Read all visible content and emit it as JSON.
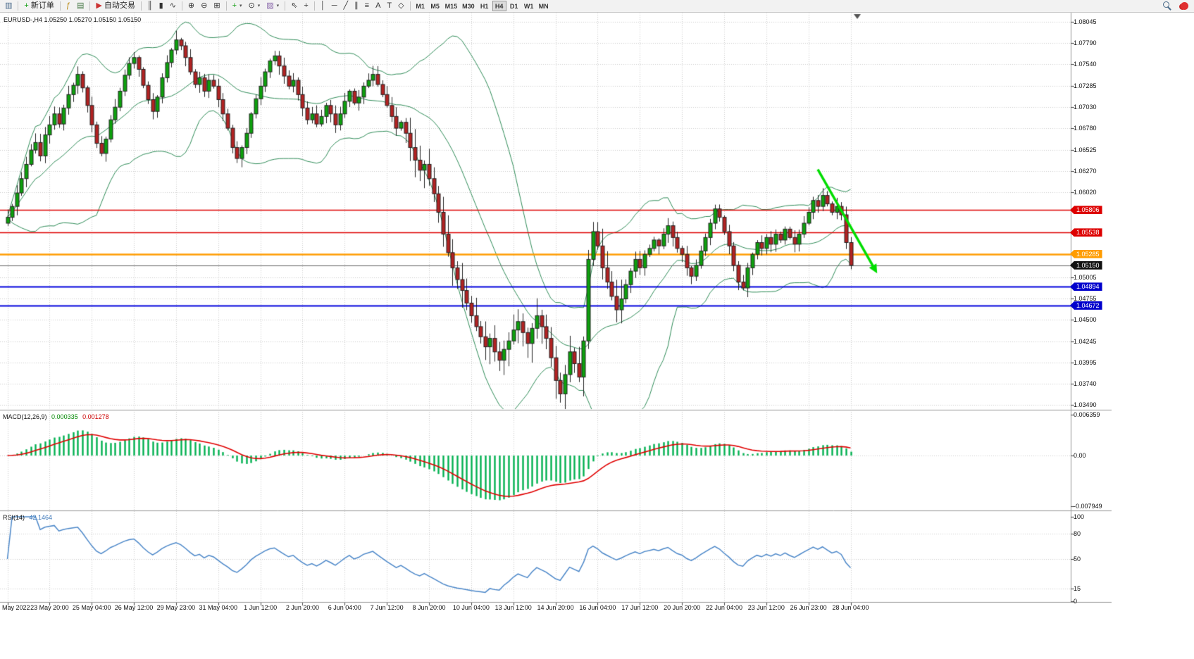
{
  "toolbar": {
    "groups": [
      {
        "items": [
          {
            "name": "chart-window-button",
            "icon": "chart-window-icon",
            "glyph": "▥",
            "color": "#446688"
          }
        ]
      },
      {
        "items": [
          {
            "name": "new-order-button",
            "icon": "new-order-icon",
            "glyph": "+",
            "color": "#18a018",
            "label": "新订单"
          }
        ]
      },
      {
        "items": [
          {
            "name": "indicators-button",
            "icon": "indicators-icon",
            "glyph": "ƒ",
            "color": "#b8860b"
          },
          {
            "name": "chart-profiles-button",
            "icon": "chart-profiles-icon",
            "glyph": "▤",
            "color": "#447744"
          }
        ]
      },
      {
        "items": [
          {
            "name": "autotrading-button",
            "icon": "autotrading-icon",
            "glyph": "▶",
            "color": "#cc3333",
            "label": "自动交易"
          }
        ]
      },
      {
        "items": [
          {
            "name": "bars-chart-type-button",
            "icon": "bars-chart-icon",
            "glyph": "║",
            "color": "#333333"
          },
          {
            "name": "candlestick-chart-type-button",
            "icon": "candlestick-chart-icon",
            "glyph": "▮",
            "color": "#333333"
          },
          {
            "name": "line-chart-type-button",
            "icon": "line-chart-icon",
            "glyph": "∿",
            "color": "#333333"
          }
        ]
      },
      {
        "items": [
          {
            "name": "zoom-in-button",
            "icon": "zoom-in-icon",
            "glyph": "⊕",
            "color": "#333333"
          },
          {
            "name": "zoom-out-button",
            "icon": "zoom-out-icon",
            "glyph": "⊖",
            "color": "#333333"
          },
          {
            "name": "tile-windows-button",
            "icon": "tile-windows-icon",
            "glyph": "⊞",
            "color": "#333333"
          }
        ]
      },
      {
        "items": [
          {
            "name": "add-indicator-button",
            "icon": "add-indicator-icon",
            "glyph": "+",
            "color": "#18a018",
            "caret": true
          },
          {
            "name": "period-clock-button",
            "icon": "clock-icon",
            "glyph": "⊙",
            "color": "#333333",
            "caret": true
          },
          {
            "name": "templates-button",
            "icon": "templates-icon",
            "glyph": "▨",
            "color": "#8866aa",
            "caret": true
          }
        ]
      },
      {
        "items": [
          {
            "name": "cursor-button",
            "icon": "cursor-icon",
            "glyph": "⇖",
            "color": "#333333"
          },
          {
            "name": "crosshair-button",
            "icon": "crosshair-icon",
            "glyph": "+",
            "color": "#333333"
          }
        ]
      },
      {
        "items": [
          {
            "name": "vertical-line-button",
            "icon": "vertical-line-icon",
            "glyph": "│",
            "color": "#333333"
          },
          {
            "name": "horizontal-line-button",
            "icon": "horizontal-line-icon",
            "glyph": "─",
            "color": "#333333"
          },
          {
            "name": "trendline-button",
            "icon": "trendline-icon",
            "glyph": "╱",
            "color": "#333333"
          },
          {
            "name": "channel-button",
            "icon": "channel-icon",
            "glyph": "∥",
            "color": "#333333"
          },
          {
            "name": "fibonacci-button",
            "icon": "fibonacci-icon",
            "glyph": "≡",
            "color": "#333333"
          },
          {
            "name": "text-button",
            "icon": "text-icon",
            "glyph": "A",
            "color": "#333333"
          },
          {
            "name": "label-button",
            "icon": "label-icon",
            "glyph": "T",
            "color": "#333333"
          },
          {
            "name": "shapes-button",
            "icon": "shapes-icon",
            "glyph": "◇",
            "color": "#333333"
          }
        ]
      }
    ],
    "timeframes": [
      "M1",
      "M5",
      "M15",
      "M30",
      "H1",
      "H4",
      "D1",
      "W1",
      "MN"
    ],
    "active_timeframe": "H4",
    "accent_colors": {
      "buy_green": "#18a018",
      "auto_red": "#cc3333",
      "notification_red": "#e03030"
    }
  },
  "chart_data": {
    "type": "candlestick",
    "symbol_period": "EURUSD-,H4",
    "ohlc_text": "1.05250 1.05270 1.05150 1.05150",
    "price_axis": {
      "max": 1.08045,
      "min": 1.0349,
      "labels": [
        "1.08045",
        "1.07790",
        "1.07540",
        "1.07285",
        "1.07030",
        "1.06780",
        "1.06525",
        "1.06270",
        "1.06020",
        "1.05005",
        "1.04755",
        "1.04500",
        "1.04245",
        "1.03995",
        "1.03740",
        "1.03490"
      ]
    },
    "time_labels": [
      "May 2022",
      "23 May 20:00",
      "25 May 04:00",
      "26 May 12:00",
      "29 May 23:00",
      "31 May 04:00",
      "1 Jun 12:00",
      "2 Jun 20:00",
      "6 Jun 04:00",
      "7 Jun 12:00",
      "8 Jun 20:00",
      "10 Jun 04:00",
      "13 Jun 12:00",
      "14 Jun 20:00",
      "16 Jun 04:00",
      "17 Jun 12:00",
      "20 Jun 20:00",
      "22 Jun 04:00",
      "23 Jun 12:00",
      "26 Jun 23:00",
      "28 Jun 04:00"
    ],
    "first_open": 1.0565,
    "closes": [
      1.0572,
      1.0585,
      1.0601,
      1.0618,
      1.0635,
      1.0652,
      1.0661,
      1.0645,
      1.067,
      1.0682,
      1.0695,
      1.0683,
      1.0702,
      1.0718,
      1.0729,
      1.0742,
      1.0726,
      1.0705,
      1.0682,
      1.066,
      1.0648,
      1.0665,
      1.0688,
      1.0703,
      1.0722,
      1.0741,
      1.0755,
      1.0762,
      1.0748,
      1.0729,
      1.0712,
      1.0698,
      1.0715,
      1.0738,
      1.0756,
      1.0771,
      1.0783,
      1.0776,
      1.0762,
      1.0745,
      1.073,
      1.0738,
      1.0722,
      1.0735,
      1.0728,
      1.0712,
      1.0695,
      1.0678,
      1.0655,
      1.0642,
      1.0655,
      1.0672,
      1.0695,
      1.0713,
      1.0728,
      1.0745,
      1.0758,
      1.0764,
      1.0752,
      1.074,
      1.0728,
      1.0735,
      1.0718,
      1.0702,
      1.0688,
      1.0695,
      1.0683,
      1.0692,
      1.0705,
      1.0695,
      1.0682,
      1.0695,
      1.071,
      1.0722,
      1.0708,
      1.0715,
      1.0728,
      1.0735,
      1.0742,
      1.073,
      1.0718,
      1.0705,
      1.0692,
      1.0678,
      1.0685,
      1.0672,
      1.0655,
      1.064,
      1.0628,
      1.0635,
      1.0618,
      1.06,
      1.0578,
      1.0552,
      1.053,
      1.0512,
      1.0498,
      1.0485,
      1.047,
      1.0455,
      1.0442,
      1.043,
      1.0418,
      1.0428,
      1.0412,
      1.0402,
      1.0415,
      1.0425,
      1.0438,
      1.0448,
      1.0435,
      1.0422,
      1.044,
      1.0455,
      1.0442,
      1.0428,
      1.0405,
      1.0378,
      1.0362,
      1.0385,
      1.0412,
      1.0398,
      1.0382,
      1.0425,
      1.0522,
      1.0555,
      1.0538,
      1.0512,
      1.0495,
      1.0478,
      1.0462,
      1.0475,
      1.0492,
      1.0508,
      1.0522,
      1.0512,
      1.0528,
      1.0535,
      1.0545,
      1.0538,
      1.0552,
      1.0562,
      1.0548,
      1.0535,
      1.0528,
      1.0512,
      1.0502,
      1.0515,
      1.0532,
      1.0548,
      1.0565,
      1.0582,
      1.0572,
      1.0555,
      1.0538,
      1.0515,
      1.0495,
      1.0488,
      1.0512,
      1.0528,
      1.0542,
      1.0535,
      1.0548,
      1.054,
      1.0552,
      1.0545,
      1.0558,
      1.0548,
      1.054,
      1.0552,
      1.0565,
      1.0578,
      1.0592,
      1.0585,
      1.0598,
      1.0588,
      1.0578,
      1.0585,
      1.0575,
      1.0542,
      1.0515
    ],
    "candles": {
      "up_color": "#0da10d",
      "down_color": "#b22222",
      "outline_color": "#222222"
    },
    "bollinger": {
      "period": 20,
      "deviation": 2,
      "color": "#2e8b57"
    },
    "hlines": [
      {
        "price": 1.05806,
        "label": "1.05806",
        "color": "#dd0000",
        "width": 1.6,
        "badge": "#dd0000"
      },
      {
        "price": 1.05538,
        "label": "1.05538",
        "color": "#dd0000",
        "width": 1.6,
        "badge": "#dd0000"
      },
      {
        "price": 1.05285,
        "label": "1.05285",
        "color": "#ff9c00",
        "width": 2.6,
        "badge": "#ff9c00"
      },
      {
        "price": 1.0515,
        "label": "1.05150",
        "color": "#6a6a6a",
        "width": 1.2,
        "badge": "#111111"
      },
      {
        "price": 1.04894,
        "label": "1.04894",
        "color": "#0000dd",
        "width": 2,
        "badge": "#0000cc"
      },
      {
        "price": 1.04672,
        "label": "1.04672",
        "color": "#0000dd",
        "width": 2,
        "badge": "#0000cc"
      }
    ],
    "arrow": {
      "from_index": 173,
      "from_price": 1.0629,
      "to_index": 185,
      "to_price": 1.0512,
      "color": "#00dd00"
    },
    "macd": {
      "label": "MACD(12,26,9)",
      "value_main": "0.000335",
      "value_signal": "0.001278",
      "fast": 12,
      "slow": 26,
      "signal": 9,
      "scale_max": 0.006359,
      "scale_min": -0.007949,
      "scale_max_text": "0.006359",
      "scale_zero_text": "0.00",
      "scale_min_text": "-0.007949",
      "histogram_color": "#00b050",
      "signal_color": "#e00000"
    },
    "rsi": {
      "label": "RSI(14)",
      "value": "42.1464",
      "period": 14,
      "levels": [
        100,
        80,
        50,
        15,
        0
      ],
      "color": "#4a86c8"
    }
  }
}
